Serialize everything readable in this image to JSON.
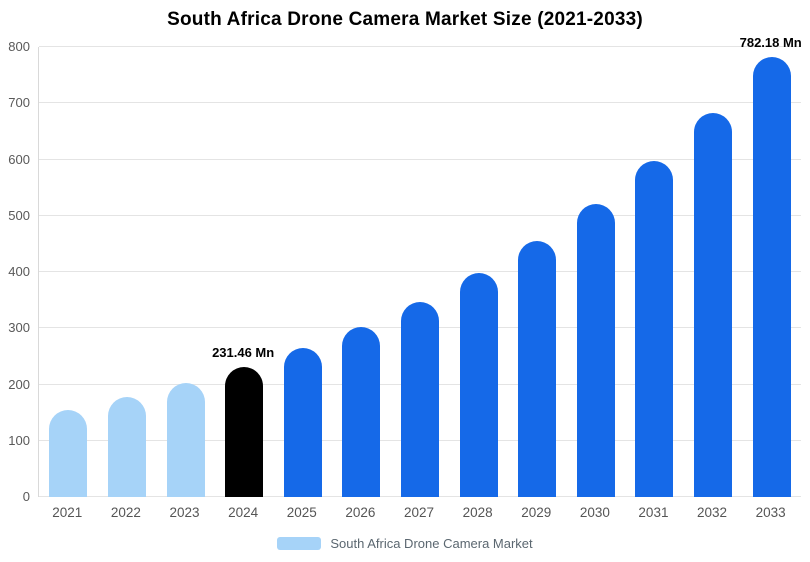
{
  "chart_data": {
    "type": "bar",
    "title": "South Africa Drone Camera Market Size (2021-2033)",
    "categories": [
      "2021",
      "2022",
      "2023",
      "2024",
      "2025",
      "2026",
      "2027",
      "2028",
      "2029",
      "2030",
      "2031",
      "2032",
      "2033"
    ],
    "values": [
      154,
      177,
      202,
      231.46,
      265,
      303,
      347,
      398,
      455,
      521,
      597,
      683,
      782.18
    ],
    "unit": "Mn",
    "xlabel": "",
    "ylabel": "",
    "ylim": [
      0,
      800
    ],
    "yticks": [
      0,
      100,
      200,
      300,
      400,
      500,
      600,
      700,
      800
    ],
    "grid": true,
    "bar_colors": [
      "#A6D3F8",
      "#A6D3F8",
      "#A6D3F8",
      "#000000",
      "#1569E8",
      "#1569E8",
      "#1569E8",
      "#1569E8",
      "#1569E8",
      "#1569E8",
      "#1569E8",
      "#1569E8",
      "#1569E8"
    ],
    "annotations": [
      {
        "index": 3,
        "text": "231.46 Mn"
      },
      {
        "index": 12,
        "text": "782.18 Mn"
      }
    ],
    "legend": {
      "label": "South Africa Drone Camera Market",
      "swatch_color": "#A6D3F8",
      "position": "bottom"
    }
  }
}
